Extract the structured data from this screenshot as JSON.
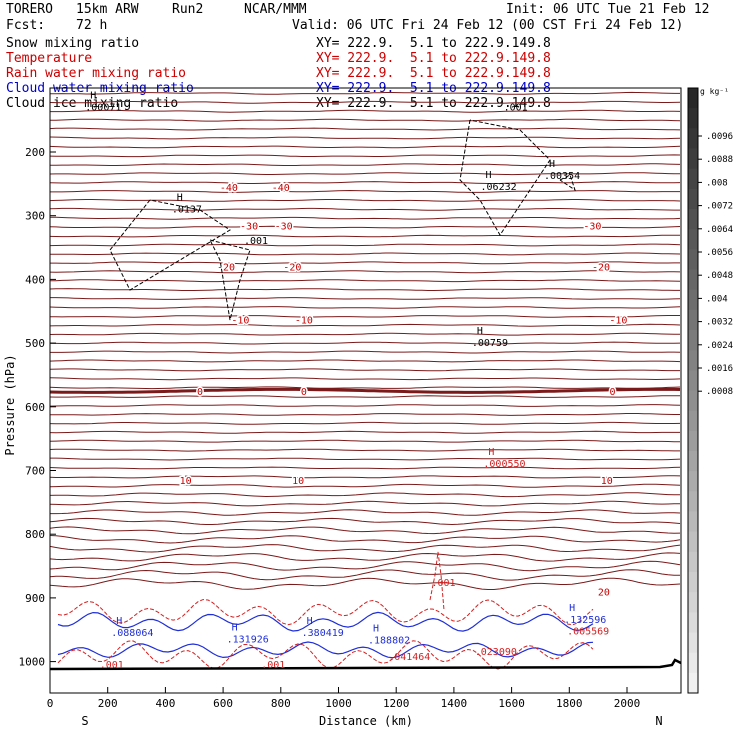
{
  "header": {
    "model": "TORERO",
    "resolution": "15km ARW",
    "run": "Run2",
    "org": "NCAR/MMM",
    "init": "Init: 06 UTC Tue 21 Feb 12",
    "fcst_label": "Fcst:",
    "fcst_value": "72 h",
    "valid": "Valid: 06 UTC Fri 24 Feb 12 (00 CST Fri 24 Feb 12)"
  },
  "fields": [
    {
      "name": "Snow mixing ratio",
      "xy": "XY= 222.9.  5.1 to 222.9.149.8",
      "color": "#000000"
    },
    {
      "name": "Temperature",
      "xy": "XY= 222.9.  5.1 to 222.9.149.8",
      "color": "#cc0000"
    },
    {
      "name": "Rain water mixing ratio",
      "xy": "XY= 222.9.  5.1 to 222.9.149.8",
      "color": "#cc0000"
    },
    {
      "name": "Cloud water mixing ratio",
      "xy": "XY= 222.9.  5.1 to 222.9.149.8",
      "color": "#0000cc"
    },
    {
      "name": "Cloud ice mixing ratio",
      "xy": "XY= 222.9.  5.1 to 222.9.149.8",
      "color": "#000000"
    }
  ],
  "colors": {
    "isotherm": "#7a1a1a",
    "temp_label": "#cc0000",
    "cloud_water": "#1f2fd8",
    "rain": "#d42020",
    "snow": "#000000",
    "ground": "#000000"
  },
  "chart_data": {
    "type": "cross-section",
    "xlabel": "Distance (km)",
    "ylabel": "Pressure (hPa)",
    "xlim": [
      0,
      2170
    ],
    "ylim": [
      1050,
      100
    ],
    "x_ticks": [
      0,
      200,
      400,
      600,
      800,
      1000,
      1200,
      1400,
      1600,
      1800,
      2000
    ],
    "y_ticks": [
      200,
      300,
      400,
      500,
      600,
      700,
      800,
      900,
      1000
    ],
    "endpoints": {
      "left": "S",
      "right": "N"
    },
    "colorbar": {
      "unit": "g kg⁻¹",
      "ticks": [
        ".0096",
        ".0088",
        ".008",
        ".0072",
        ".0064",
        ".0056",
        ".0048",
        ".004",
        ".0032",
        ".0024",
        ".0016",
        ".0008"
      ]
    },
    "isotherms_degC": [
      {
        "value": -40,
        "label_x_km": [
          620,
          800
        ],
        "p_hPa": 255
      },
      {
        "value": -30,
        "label_x_km": [
          690,
          810,
          1880
        ],
        "p_hPa": 315
      },
      {
        "value": -20,
        "label_x_km": [
          610,
          840,
          1910
        ],
        "p_hPa": 380
      },
      {
        "value": -10,
        "label_x_km": [
          660,
          880,
          1970
        ],
        "p_hPa": 463
      },
      {
        "value": 0,
        "label_x_km": [
          520,
          880,
          1950
        ],
        "p_hPa": 575
      },
      {
        "value": 10,
        "label_x_km": [
          470,
          860,
          1930
        ],
        "p_hPa": 715
      },
      {
        "value": 20,
        "label_x_km": [
          1920
        ],
        "p_hPa": 890
      }
    ],
    "annotations": [
      {
        "label": "H",
        "value": ".00071",
        "x_km": 150,
        "p_hPa": 130,
        "field": "snow"
      },
      {
        "label": "H",
        "value": ".0137",
        "x_km": 450,
        "p_hPa": 290,
        "field": "snow"
      },
      {
        "label": "",
        "value": ".001",
        "x_km": 700,
        "p_hPa": 340,
        "field": "snow"
      },
      {
        "label": "H",
        "value": ".06232",
        "x_km": 1520,
        "p_hPa": 255,
        "field": "snow"
      },
      {
        "label": "H",
        "value": ".00354",
        "x_km": 1740,
        "p_hPa": 238,
        "field": "snow"
      },
      {
        "label": "",
        "value": ".001",
        "x_km": 1600,
        "p_hPa": 130,
        "field": "snow"
      },
      {
        "label": "H",
        "value": ".00759",
        "x_km": 1490,
        "p_hPa": 500,
        "field": "snow"
      },
      {
        "label": "H",
        "value": ".000550",
        "x_km": 1530,
        "p_hPa": 690,
        "field": "rain"
      },
      {
        "label": "",
        "value": ".001",
        "x_km": 1350,
        "p_hPa": 877,
        "field": "rain"
      },
      {
        "label": "",
        "value": ".001",
        "x_km": 200,
        "p_hPa": 1005,
        "field": "rain"
      },
      {
        "label": "",
        "value": ".001",
        "x_km": 760,
        "p_hPa": 1005,
        "field": "rain"
      },
      {
        "label": "",
        "value": ".041464",
        "x_km": 1200,
        "p_hPa": 993,
        "field": "rain"
      },
      {
        "label": "",
        "value": ".023090",
        "x_km": 1500,
        "p_hPa": 985,
        "field": "rain"
      },
      {
        "label": "",
        "value": ".005569",
        "x_km": 1820,
        "p_hPa": 953,
        "field": "rain"
      },
      {
        "label": "H",
        "value": ".131926",
        "x_km": 640,
        "p_hPa": 965,
        "field": "cloud_water"
      },
      {
        "label": "H",
        "value": ".188802",
        "x_km": 1130,
        "p_hPa": 967,
        "field": "cloud_water"
      },
      {
        "label": "H",
        "value": ".132596",
        "x_km": 1810,
        "p_hPa": 935,
        "field": "cloud_water"
      },
      {
        "label": "H",
        "value": ".380419",
        "x_km": 900,
        "p_hPa": 955,
        "field": "cloud_water"
      },
      {
        "label": "H",
        "value": ".088064",
        "x_km": 240,
        "p_hPa": 955,
        "field": "cloud_water"
      }
    ]
  }
}
